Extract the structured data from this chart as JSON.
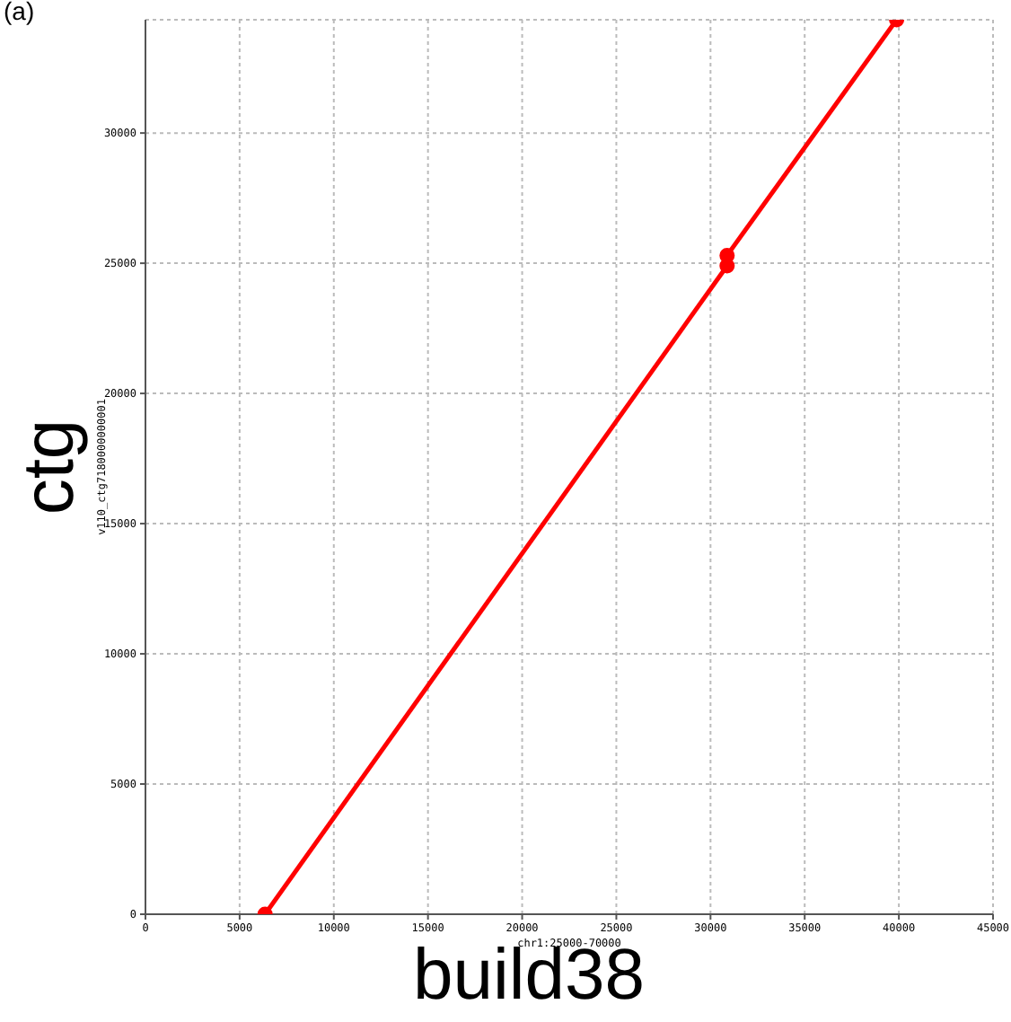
{
  "chart_data": {
    "type": "line",
    "xlabel": "build38",
    "ylabel": "ctg",
    "annotations": [
      "(a)",
      "chr1:25000-70000",
      "v110_ctg7180000000001"
    ],
    "series": [
      {
        "color": "#ff0000",
        "x": [
          6350,
          30880
        ],
        "values": [
          0,
          24900
        ]
      },
      {
        "color": "#ff0000",
        "x": [
          30880,
          39880
        ],
        "values": [
          25300,
          34350
        ]
      }
    ],
    "xlim": [
      0,
      45000
    ],
    "xticks": [
      0,
      5000,
      10000,
      15000,
      20000,
      25000,
      30000,
      35000,
      40000,
      45000
    ],
    "ylim": [
      0,
      34350
    ],
    "yticks": [
      0,
      5000,
      10000,
      15000,
      20000,
      25000,
      30000
    ],
    "grid": true,
    "marker": "circle",
    "line_style": "solid"
  }
}
